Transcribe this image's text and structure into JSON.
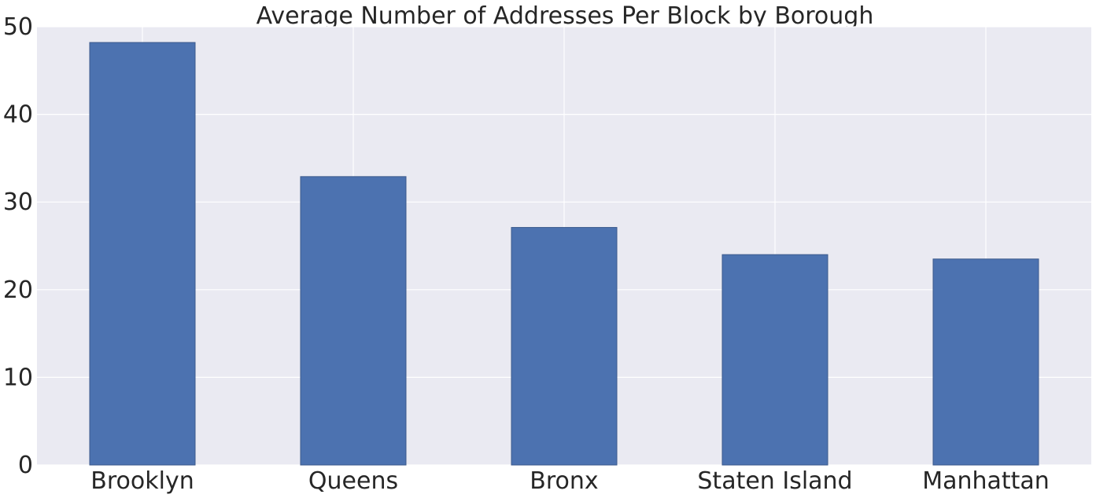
{
  "chart_data": {
    "type": "bar",
    "title": "Average Number of Addresses Per Block by Borough",
    "xlabel": "",
    "ylabel": "",
    "categories": [
      "Brooklyn",
      "Queens",
      "Bronx",
      "Staten Island",
      "Manhattan"
    ],
    "values": [
      48.2,
      32.9,
      27.1,
      24.0,
      23.5
    ],
    "ylim": [
      0,
      50
    ],
    "yticks": [
      "0",
      "10",
      "20",
      "30",
      "40",
      "50"
    ],
    "grid": true,
    "legend": "none",
    "colors": {
      "bar": "#4c72b0",
      "bar_edge": "#3c5a8c",
      "background": "#eaeaf2",
      "grid": "#ffffff"
    }
  }
}
